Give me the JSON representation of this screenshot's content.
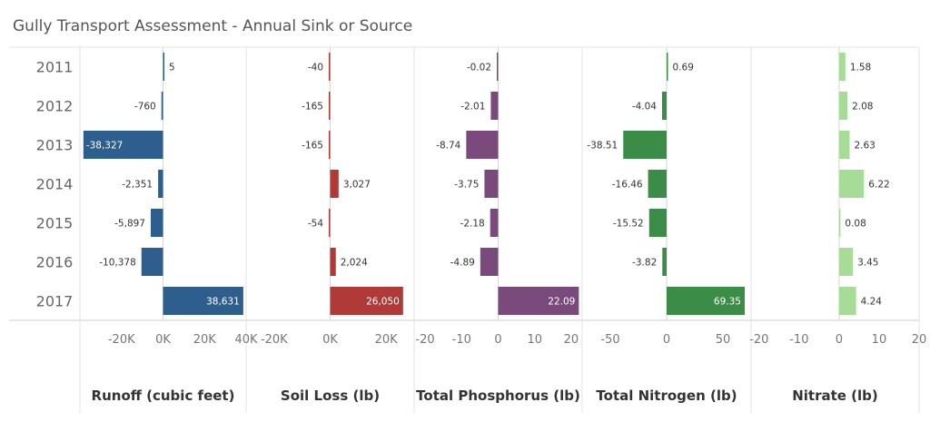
{
  "title": "Gully Transport Assessment - Annual Sink or Source",
  "chart_data": {
    "type": "bar",
    "orientation": "horizontal",
    "categories": [
      "2011",
      "2012",
      "2013",
      "2014",
      "2015",
      "2016",
      "2017"
    ],
    "panels": [
      {
        "title": "Runoff (cubic feet)",
        "color": "#2e5e8e",
        "values": [
          5,
          -760,
          -38327,
          -2351,
          -5897,
          -10378,
          38631
        ],
        "value_labels": [
          "5",
          "-760",
          "-38,327",
          "-2,351",
          "-5,897",
          "-10,378",
          "38,631"
        ],
        "xlim": [
          -40000,
          40000
        ],
        "ticks": [
          -20000,
          0,
          20000,
          40000
        ],
        "tick_labels": [
          "-20K",
          "0K",
          "20K",
          "40K"
        ]
      },
      {
        "title": "Soil Loss (lb)",
        "color": "#b03a37",
        "values": [
          -40,
          -165,
          -165,
          3027,
          -54,
          2024,
          26050
        ],
        "value_labels": [
          "-40",
          "-165",
          "-165",
          "3,027",
          "-54",
          "2,024",
          "26,050"
        ],
        "xlim": [
          -30000,
          30000
        ],
        "ticks": [
          -20000,
          0,
          20000
        ],
        "tick_labels": [
          "-20K",
          "0K",
          "20K"
        ]
      },
      {
        "title": "Total Phosphorus (lb)",
        "color": "#7b4a7d",
        "values": [
          -0.02,
          -2.01,
          -8.74,
          -3.75,
          -2.18,
          -4.89,
          22.09
        ],
        "value_labels": [
          "-0.02",
          "-2.01",
          "-8.74",
          "-3.75",
          "-2.18",
          "-4.89",
          "22.09"
        ],
        "xlim": [
          -23,
          23
        ],
        "ticks": [
          -20,
          -10,
          0,
          10,
          20
        ],
        "tick_labels": [
          "-20",
          "-10",
          "0",
          "10",
          "20"
        ]
      },
      {
        "title": "Total Nitrogen (lb)",
        "color": "#3b8c46",
        "values": [
          0.69,
          -4.04,
          -38.51,
          -16.46,
          -15.52,
          -3.82,
          69.35
        ],
        "value_labels": [
          "0.69",
          "-4.04",
          "-38.51",
          "-16.46",
          "-15.52",
          "-3.82",
          "69.35"
        ],
        "xlim": [
          -75,
          75
        ],
        "ticks": [
          -50,
          0,
          50
        ],
        "tick_labels": [
          "-50",
          "0",
          "50"
        ]
      },
      {
        "title": "Nitrate (lb)",
        "color": "#a6dc98",
        "values": [
          1.58,
          2.08,
          2.63,
          6.22,
          0.08,
          3.45,
          4.24
        ],
        "value_labels": [
          "1.58",
          "2.08",
          "2.63",
          "6.22",
          "0.08",
          "3.45",
          "4.24"
        ],
        "xlim": [
          -22,
          20
        ],
        "ticks": [
          -20,
          -10,
          0,
          10,
          20
        ],
        "tick_labels": [
          "-20",
          "-10",
          "0",
          "10",
          "20"
        ]
      }
    ],
    "grid": false,
    "legend": "none"
  }
}
